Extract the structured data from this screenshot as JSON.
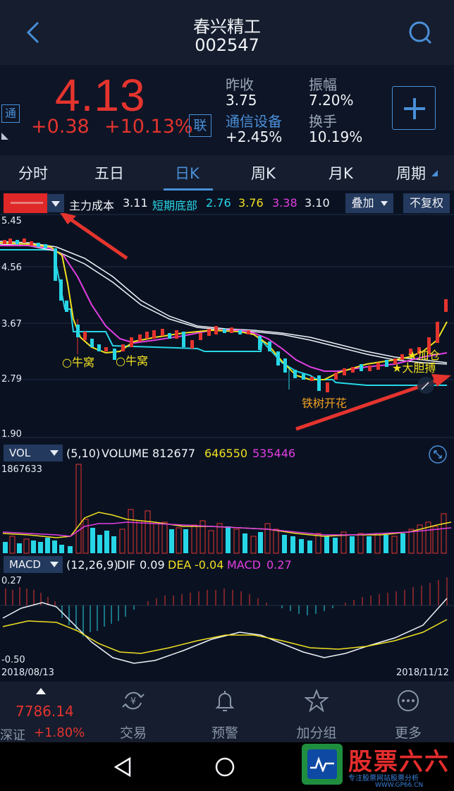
{
  "header": {
    "name": "春兴精工",
    "code": "002547"
  },
  "quote": {
    "badge_tong": "通",
    "price": "4.13",
    "change": "+0.38",
    "change_pct": "+10.13%",
    "badge_lian": "联",
    "prev_close_label": "昨收",
    "prev_close": "3.75",
    "industry": "通信设备",
    "industry_pct": "+2.45%",
    "amplitude_label": "振幅",
    "amplitude": "7.20%",
    "turnover_label": "换手",
    "turnover": "10.19%"
  },
  "tabs": [
    "分时",
    "五日",
    "日K",
    "周K",
    "月K",
    "周期"
  ],
  "indicator_bar": {
    "cost_label": "主力成本",
    "cost_value": "3.11",
    "bottom_label": "短期底部",
    "v1": "2.76",
    "v2": "3.76",
    "v3": "3.38",
    "v4": "3.10",
    "overlay_btn": "叠加",
    "restore_btn": "不复权"
  },
  "main_chart": {
    "y_labels": [
      "5.45",
      "4.56",
      "3.67",
      "2.79",
      "1.90"
    ],
    "annotations": [
      "○牛窝",
      "○牛窝",
      "铁树开花",
      "★加仓",
      "★大胆搏"
    ]
  },
  "volume": {
    "selector": "VOL",
    "params": "(5,10)",
    "title": "VOLUME",
    "v": "812677",
    "ma5": "646550",
    "ma10": "535446",
    "max_label": "1867633"
  },
  "macd": {
    "selector": "MACD",
    "params": "(12,26,9)",
    "dif_label": "DIF",
    "dif": "0.09",
    "dea_label": "DEA",
    "dea": "-0.04",
    "macd_label": "MACD",
    "macd_val": "0.27",
    "top_label": "0.27",
    "bottom_label": "-0.50",
    "date_start": "2018/08/13",
    "date_end": "2018/11/12"
  },
  "bottom_nav": {
    "index_value": "7786.14",
    "index_name": "深证",
    "index_pct": "+1.80%",
    "items": [
      "交易",
      "预警",
      "加分组",
      "更多"
    ]
  },
  "watermark": {
    "title": "股票六六",
    "subtitle": "专注股票网站股票分析",
    "url": "WWW.GP66.CN"
  },
  "colors": {
    "up": "#e5342e",
    "down": "#27d6e6",
    "accent": "#4a8fd8",
    "bg": "#0a1222"
  }
}
